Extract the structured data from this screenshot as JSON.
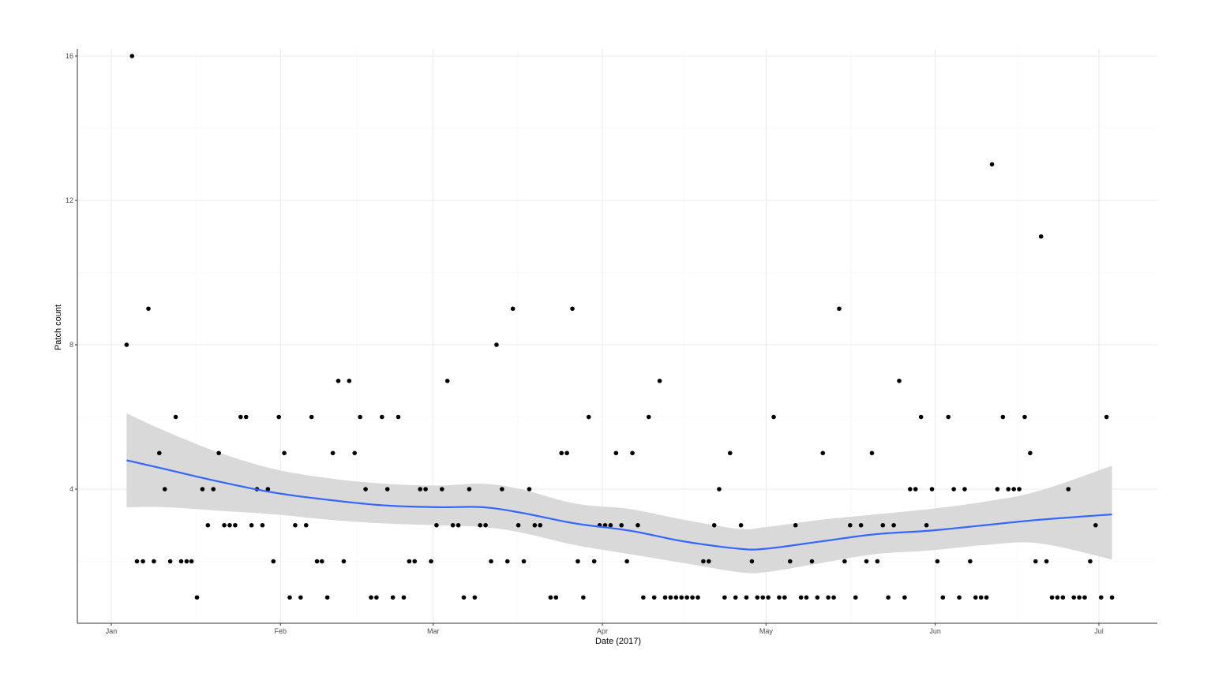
{
  "chart_data": {
    "type": "scatter",
    "title": "",
    "xlabel": "Date (2017)",
    "ylabel": "Patch count",
    "x_ticks": [
      "Jan",
      "Feb",
      "Mar",
      "Apr",
      "May",
      "Jun",
      "Jul"
    ],
    "x_tick_days": [
      0,
      31,
      59,
      90,
      120,
      151,
      181
    ],
    "y_ticks": [
      4,
      8,
      12,
      16
    ],
    "y_minor_gridlines": [
      2,
      6,
      10,
      14
    ],
    "ylim": [
      0.3,
      16.4
    ],
    "xlim_days": [
      -6,
      193
    ],
    "grid": true,
    "legend": null,
    "colors": {
      "points": "#000000",
      "smooth_line": "#3366ff",
      "confidence_band": "#d9d9d9",
      "grid": "#f0f0f0",
      "axis": "#333333"
    },
    "points": [
      {
        "day": 2.8,
        "y": 8
      },
      {
        "day": 3.8,
        "y": 16
      },
      {
        "day": 4.7,
        "y": 2
      },
      {
        "day": 5.8,
        "y": 2
      },
      {
        "day": 6.8,
        "y": 9
      },
      {
        "day": 7.8,
        "y": 2
      },
      {
        "day": 8.8,
        "y": 5
      },
      {
        "day": 9.8,
        "y": 4
      },
      {
        "day": 10.8,
        "y": 2
      },
      {
        "day": 11.8,
        "y": 6
      },
      {
        "day": 12.8,
        "y": 2
      },
      {
        "day": 13.8,
        "y": 2
      },
      {
        "day": 14.7,
        "y": 2
      },
      {
        "day": 15.7,
        "y": 1
      },
      {
        "day": 16.7,
        "y": 4
      },
      {
        "day": 17.7,
        "y": 3
      },
      {
        "day": 18.7,
        "y": 4
      },
      {
        "day": 19.7,
        "y": 5
      },
      {
        "day": 20.7,
        "y": 3
      },
      {
        "day": 21.7,
        "y": 3
      },
      {
        "day": 22.7,
        "y": 3
      },
      {
        "day": 23.7,
        "y": 6
      },
      {
        "day": 24.7,
        "y": 6
      },
      {
        "day": 25.7,
        "y": 3
      },
      {
        "day": 26.7,
        "y": 4
      },
      {
        "day": 27.7,
        "y": 3
      },
      {
        "day": 28.7,
        "y": 4
      },
      {
        "day": 29.7,
        "y": 2
      },
      {
        "day": 30.7,
        "y": 6
      },
      {
        "day": 31.7,
        "y": 5
      },
      {
        "day": 32.7,
        "y": 1
      },
      {
        "day": 33.7,
        "y": 3
      },
      {
        "day": 34.7,
        "y": 1
      },
      {
        "day": 35.7,
        "y": 3
      },
      {
        "day": 36.7,
        "y": 6
      },
      {
        "day": 37.7,
        "y": 2
      },
      {
        "day": 38.6,
        "y": 2
      },
      {
        "day": 39.6,
        "y": 1
      },
      {
        "day": 40.6,
        "y": 5
      },
      {
        "day": 41.6,
        "y": 7
      },
      {
        "day": 42.6,
        "y": 2
      },
      {
        "day": 43.6,
        "y": 7
      },
      {
        "day": 44.6,
        "y": 5
      },
      {
        "day": 45.6,
        "y": 6
      },
      {
        "day": 46.6,
        "y": 4
      },
      {
        "day": 47.6,
        "y": 1
      },
      {
        "day": 48.6,
        "y": 1
      },
      {
        "day": 49.6,
        "y": 6
      },
      {
        "day": 50.6,
        "y": 4
      },
      {
        "day": 51.6,
        "y": 1
      },
      {
        "day": 52.6,
        "y": 6
      },
      {
        "day": 53.6,
        "y": 1
      },
      {
        "day": 54.6,
        "y": 2
      },
      {
        "day": 55.6,
        "y": 2
      },
      {
        "day": 56.6,
        "y": 4
      },
      {
        "day": 57.6,
        "y": 4
      },
      {
        "day": 58.6,
        "y": 2
      },
      {
        "day": 59.6,
        "y": 3
      },
      {
        "day": 60.6,
        "y": 4
      },
      {
        "day": 61.6,
        "y": 7
      },
      {
        "day": 62.6,
        "y": 3
      },
      {
        "day": 63.6,
        "y": 3
      },
      {
        "day": 64.6,
        "y": 1
      },
      {
        "day": 65.6,
        "y": 4
      },
      {
        "day": 66.6,
        "y": 1
      },
      {
        "day": 67.6,
        "y": 3
      },
      {
        "day": 68.6,
        "y": 3
      },
      {
        "day": 69.6,
        "y": 2
      },
      {
        "day": 70.6,
        "y": 8
      },
      {
        "day": 71.6,
        "y": 4
      },
      {
        "day": 72.6,
        "y": 2
      },
      {
        "day": 73.6,
        "y": 9
      },
      {
        "day": 74.6,
        "y": 3
      },
      {
        "day": 75.6,
        "y": 2
      },
      {
        "day": 76.6,
        "y": 4
      },
      {
        "day": 77.6,
        "y": 3
      },
      {
        "day": 78.6,
        "y": 3
      },
      {
        "day": 80.5,
        "y": 1
      },
      {
        "day": 81.5,
        "y": 1
      },
      {
        "day": 82.5,
        "y": 5
      },
      {
        "day": 83.5,
        "y": 5
      },
      {
        "day": 84.5,
        "y": 9
      },
      {
        "day": 85.5,
        "y": 2
      },
      {
        "day": 86.5,
        "y": 1
      },
      {
        "day": 87.5,
        "y": 6
      },
      {
        "day": 88.5,
        "y": 2
      },
      {
        "day": 89.5,
        "y": 3
      },
      {
        "day": 90.5,
        "y": 3
      },
      {
        "day": 91.5,
        "y": 3
      },
      {
        "day": 92.5,
        "y": 5
      },
      {
        "day": 93.5,
        "y": 3
      },
      {
        "day": 94.5,
        "y": 2
      },
      {
        "day": 95.5,
        "y": 5
      },
      {
        "day": 96.5,
        "y": 3
      },
      {
        "day": 97.5,
        "y": 1
      },
      {
        "day": 98.5,
        "y": 6
      },
      {
        "day": 99.5,
        "y": 1
      },
      {
        "day": 100.5,
        "y": 7
      },
      {
        "day": 101.5,
        "y": 1
      },
      {
        "day": 102.5,
        "y": 1
      },
      {
        "day": 103.5,
        "y": 1
      },
      {
        "day": 104.5,
        "y": 1
      },
      {
        "day": 105.5,
        "y": 1
      },
      {
        "day": 106.5,
        "y": 1
      },
      {
        "day": 107.5,
        "y": 1
      },
      {
        "day": 108.5,
        "y": 2
      },
      {
        "day": 109.5,
        "y": 2
      },
      {
        "day": 110.5,
        "y": 3
      },
      {
        "day": 111.4,
        "y": 4
      },
      {
        "day": 112.4,
        "y": 1
      },
      {
        "day": 113.4,
        "y": 5
      },
      {
        "day": 114.4,
        "y": 1
      },
      {
        "day": 115.4,
        "y": 3
      },
      {
        "day": 116.4,
        "y": 1
      },
      {
        "day": 117.4,
        "y": 2
      },
      {
        "day": 118.4,
        "y": 1
      },
      {
        "day": 119.4,
        "y": 1
      },
      {
        "day": 120.4,
        "y": 1
      },
      {
        "day": 121.4,
        "y": 6
      },
      {
        "day": 122.4,
        "y": 1
      },
      {
        "day": 123.4,
        "y": 1
      },
      {
        "day": 124.4,
        "y": 2
      },
      {
        "day": 125.4,
        "y": 3
      },
      {
        "day": 126.4,
        "y": 1
      },
      {
        "day": 127.4,
        "y": 1
      },
      {
        "day": 128.4,
        "y": 2
      },
      {
        "day": 129.4,
        "y": 1
      },
      {
        "day": 130.4,
        "y": 5
      },
      {
        "day": 131.4,
        "y": 1
      },
      {
        "day": 132.4,
        "y": 1
      },
      {
        "day": 133.4,
        "y": 9
      },
      {
        "day": 134.4,
        "y": 2
      },
      {
        "day": 135.4,
        "y": 3
      },
      {
        "day": 136.4,
        "y": 1
      },
      {
        "day": 137.4,
        "y": 3
      },
      {
        "day": 138.4,
        "y": 2
      },
      {
        "day": 139.4,
        "y": 5
      },
      {
        "day": 140.4,
        "y": 2
      },
      {
        "day": 141.4,
        "y": 3
      },
      {
        "day": 142.4,
        "y": 1
      },
      {
        "day": 143.4,
        "y": 3
      },
      {
        "day": 144.4,
        "y": 7
      },
      {
        "day": 145.4,
        "y": 1
      },
      {
        "day": 146.4,
        "y": 4
      },
      {
        "day": 147.4,
        "y": 4
      },
      {
        "day": 148.4,
        "y": 6
      },
      {
        "day": 149.4,
        "y": 3
      },
      {
        "day": 150.4,
        "y": 4
      },
      {
        "day": 151.4,
        "y": 2
      },
      {
        "day": 152.4,
        "y": 1
      },
      {
        "day": 153.4,
        "y": 6
      },
      {
        "day": 154.4,
        "y": 4
      },
      {
        "day": 155.4,
        "y": 1
      },
      {
        "day": 156.4,
        "y": 4
      },
      {
        "day": 157.4,
        "y": 2
      },
      {
        "day": 158.4,
        "y": 1
      },
      {
        "day": 159.4,
        "y": 1
      },
      {
        "day": 160.4,
        "y": 1
      },
      {
        "day": 161.4,
        "y": 13
      },
      {
        "day": 162.4,
        "y": 4
      },
      {
        "day": 163.4,
        "y": 6
      },
      {
        "day": 164.4,
        "y": 4
      },
      {
        "day": 165.4,
        "y": 4
      },
      {
        "day": 166.4,
        "y": 4
      },
      {
        "day": 167.4,
        "y": 6
      },
      {
        "day": 168.4,
        "y": 5
      },
      {
        "day": 169.4,
        "y": 2
      },
      {
        "day": 170.4,
        "y": 11
      },
      {
        "day": 171.4,
        "y": 2
      },
      {
        "day": 172.4,
        "y": 1
      },
      {
        "day": 173.4,
        "y": 1
      },
      {
        "day": 174.4,
        "y": 1
      },
      {
        "day": 175.4,
        "y": 4
      },
      {
        "day": 176.4,
        "y": 1
      },
      {
        "day": 177.4,
        "y": 1
      },
      {
        "day": 178.4,
        "y": 1
      },
      {
        "day": 179.4,
        "y": 2
      },
      {
        "day": 180.4,
        "y": 3
      },
      {
        "day": 181.4,
        "y": 1
      },
      {
        "day": 182.4,
        "y": 6
      },
      {
        "day": 183.4,
        "y": 1
      }
    ],
    "smooth": {
      "method": "loess",
      "fit": [
        {
          "day": 2.8,
          "y": 4.8,
          "lo": 3.5,
          "hi": 6.1
        },
        {
          "day": 10,
          "y": 4.55,
          "lo": 3.5,
          "hi": 5.6
        },
        {
          "day": 20,
          "y": 4.2,
          "lo": 3.4,
          "hi": 5.0
        },
        {
          "day": 30,
          "y": 3.9,
          "lo": 3.3,
          "hi": 4.55
        },
        {
          "day": 40,
          "y": 3.7,
          "lo": 3.15,
          "hi": 4.3
        },
        {
          "day": 50,
          "y": 3.55,
          "lo": 3.05,
          "hi": 4.15
        },
        {
          "day": 60,
          "y": 3.5,
          "lo": 3.0,
          "hi": 4.1
        },
        {
          "day": 68,
          "y": 3.5,
          "lo": 2.95,
          "hi": 4.15
        },
        {
          "day": 75,
          "y": 3.35,
          "lo": 2.8,
          "hi": 4.0
        },
        {
          "day": 85,
          "y": 3.05,
          "lo": 2.45,
          "hi": 3.6
        },
        {
          "day": 95,
          "y": 2.85,
          "lo": 2.2,
          "hi": 3.45
        },
        {
          "day": 105,
          "y": 2.55,
          "lo": 1.95,
          "hi": 3.15
        },
        {
          "day": 115,
          "y": 2.35,
          "lo": 1.7,
          "hi": 2.9
        },
        {
          "day": 120,
          "y": 2.35,
          "lo": 1.7,
          "hi": 2.95
        },
        {
          "day": 130,
          "y": 2.55,
          "lo": 1.95,
          "hi": 3.15
        },
        {
          "day": 140,
          "y": 2.75,
          "lo": 2.2,
          "hi": 3.3
        },
        {
          "day": 150,
          "y": 2.85,
          "lo": 2.3,
          "hi": 3.45
        },
        {
          "day": 160,
          "y": 3.0,
          "lo": 2.45,
          "hi": 3.65
        },
        {
          "day": 170,
          "y": 3.15,
          "lo": 2.5,
          "hi": 3.95
        },
        {
          "day": 183.4,
          "y": 3.3,
          "lo": 2.05,
          "hi": 4.65
        }
      ]
    }
  }
}
